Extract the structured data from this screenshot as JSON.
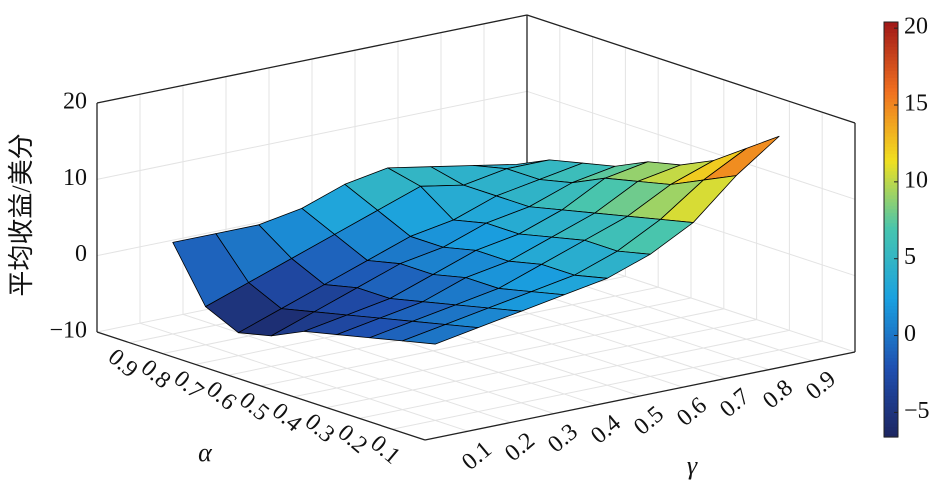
{
  "chart_data": {
    "type": "surface",
    "zlabel": "平均收益/美分",
    "xlabel": "α",
    "ylabel": "γ",
    "x": [
      0.1,
      0.2,
      0.3,
      0.4,
      0.5,
      0.6,
      0.7,
      0.8,
      0.9
    ],
    "y": [
      0.1,
      0.2,
      0.3,
      0.4,
      0.5,
      0.6,
      0.7,
      0.8,
      0.9
    ],
    "z": [
      [
        0,
        1,
        2,
        3,
        4,
        6,
        9,
        14,
        18
      ],
      [
        -1,
        0,
        1,
        2,
        3,
        5,
        8,
        12,
        15
      ],
      [
        -2,
        -1,
        0,
        1,
        3,
        5,
        7,
        10,
        12
      ],
      [
        -3,
        -2,
        -1,
        1,
        2,
        4,
        6,
        9,
        10
      ],
      [
        -4,
        -3,
        -2,
        0,
        2,
        3,
        5,
        8,
        9
      ],
      [
        -6,
        -4,
        -2,
        0,
        1,
        3,
        4,
        6,
        7
      ],
      [
        -7,
        -5,
        -3,
        -1,
        1,
        2,
        4,
        5,
        6
      ],
      [
        -5,
        -3,
        -1,
        1,
        3,
        5,
        4,
        5,
        5
      ],
      [
        2,
        2,
        2,
        3,
        5,
        6,
        5,
        4,
        3
      ]
    ],
    "xlim": [
      0,
      1
    ],
    "ylim": [
      0,
      1
    ],
    "zlim": [
      -10,
      20
    ],
    "xticks": [
      0.1,
      0.2,
      0.3,
      0.4,
      0.5,
      0.6,
      0.7,
      0.8,
      0.9
    ],
    "yticks": [
      0.1,
      0.2,
      0.3,
      0.4,
      0.5,
      0.6,
      0.7,
      0.8,
      0.9
    ],
    "zticks": [
      20,
      10,
      0,
      {
        "value": -10,
        "label": "−10"
      }
    ],
    "grid": true,
    "edge_color": "#000000",
    "colorbar": {
      "clim": [
        -6.6,
        20.4
      ],
      "ticks": [
        20,
        15,
        10,
        5,
        0,
        {
          "value": -5,
          "label": "−5"
        }
      ],
      "colors": [
        "#1d2560",
        "#1f4fb0",
        "#1aa0e0",
        "#45c4b0",
        "#f0e020",
        "#f07020",
        "#a01818"
      ]
    }
  }
}
